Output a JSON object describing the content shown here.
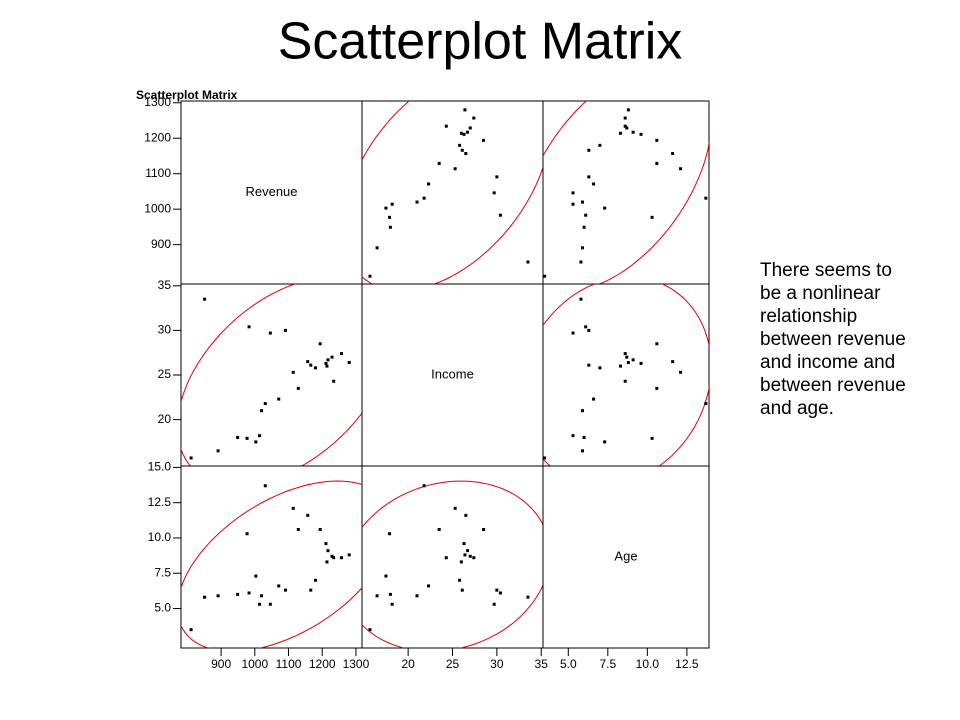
{
  "slide_title": "Scatterplot Matrix",
  "note_lines": [
    "There seems to",
    "be a nonlinear",
    "relationship",
    "between revenue",
    "and income and",
    "between revenue",
    "and age."
  ],
  "chart_data": {
    "type": "scatter_matrix",
    "title": "Scatterplot Matrix",
    "point_color": "#000000",
    "ellipse_color": "#e00000",
    "variables": [
      {
        "name": "Revenue",
        "values": [
          811,
          851,
          891,
          949,
          977,
          983,
          1003,
          1014,
          1020,
          1031,
          1046,
          1071,
          1091,
          1114,
          1129,
          1157,
          1166,
          1180,
          1194,
          1211,
          1214,
          1217,
          1229,
          1234,
          1257,
          1280
        ],
        "xlim": [
          781,
          1318
        ],
        "ylim": [
          789,
          1305
        ],
        "xticks": [
          900,
          1000,
          1100,
          1200,
          1300
        ],
        "yticks": [
          900,
          1000,
          1100,
          1200,
          1300
        ]
      },
      {
        "name": "Income",
        "values": [
          15.7,
          33.5,
          16.5,
          18.0,
          17.9,
          30.4,
          17.5,
          18.2,
          21.0,
          21.8,
          29.7,
          22.3,
          30.0,
          25.3,
          23.5,
          26.5,
          26.1,
          25.8,
          28.5,
          26.3,
          26.0,
          26.7,
          27.0,
          24.3,
          27.4,
          26.4
        ],
        "xlim": [
          14.8,
          35.2
        ],
        "ylim": [
          14.8,
          35.2
        ],
        "xticks": [
          20,
          25,
          30,
          35
        ],
        "yticks": [
          20,
          25,
          30,
          35
        ]
      },
      {
        "name": "Age",
        "values": [
          3.5,
          5.8,
          5.9,
          6.0,
          10.3,
          6.1,
          7.3,
          5.3,
          5.9,
          13.7,
          5.3,
          6.6,
          6.3,
          12.1,
          10.6,
          11.6,
          6.3,
          7.0,
          10.6,
          9.6,
          8.3,
          9.1,
          8.7,
          8.6,
          8.6,
          8.8
        ],
        "xlim": [
          3.4,
          13.9
        ],
        "ylim": [
          2.2,
          15.1
        ],
        "xticks": [
          {
            "value": 5,
            "label": "5.0"
          },
          7.5,
          {
            "value": 10,
            "label": "10.0"
          },
          12.5
        ],
        "yticks": [
          {
            "value": 5,
            "label": "5.0"
          },
          7.5,
          {
            "value": 10,
            "label": "10.0"
          },
          12.5,
          {
            "value": 15,
            "label": "15.0"
          }
        ]
      }
    ]
  }
}
